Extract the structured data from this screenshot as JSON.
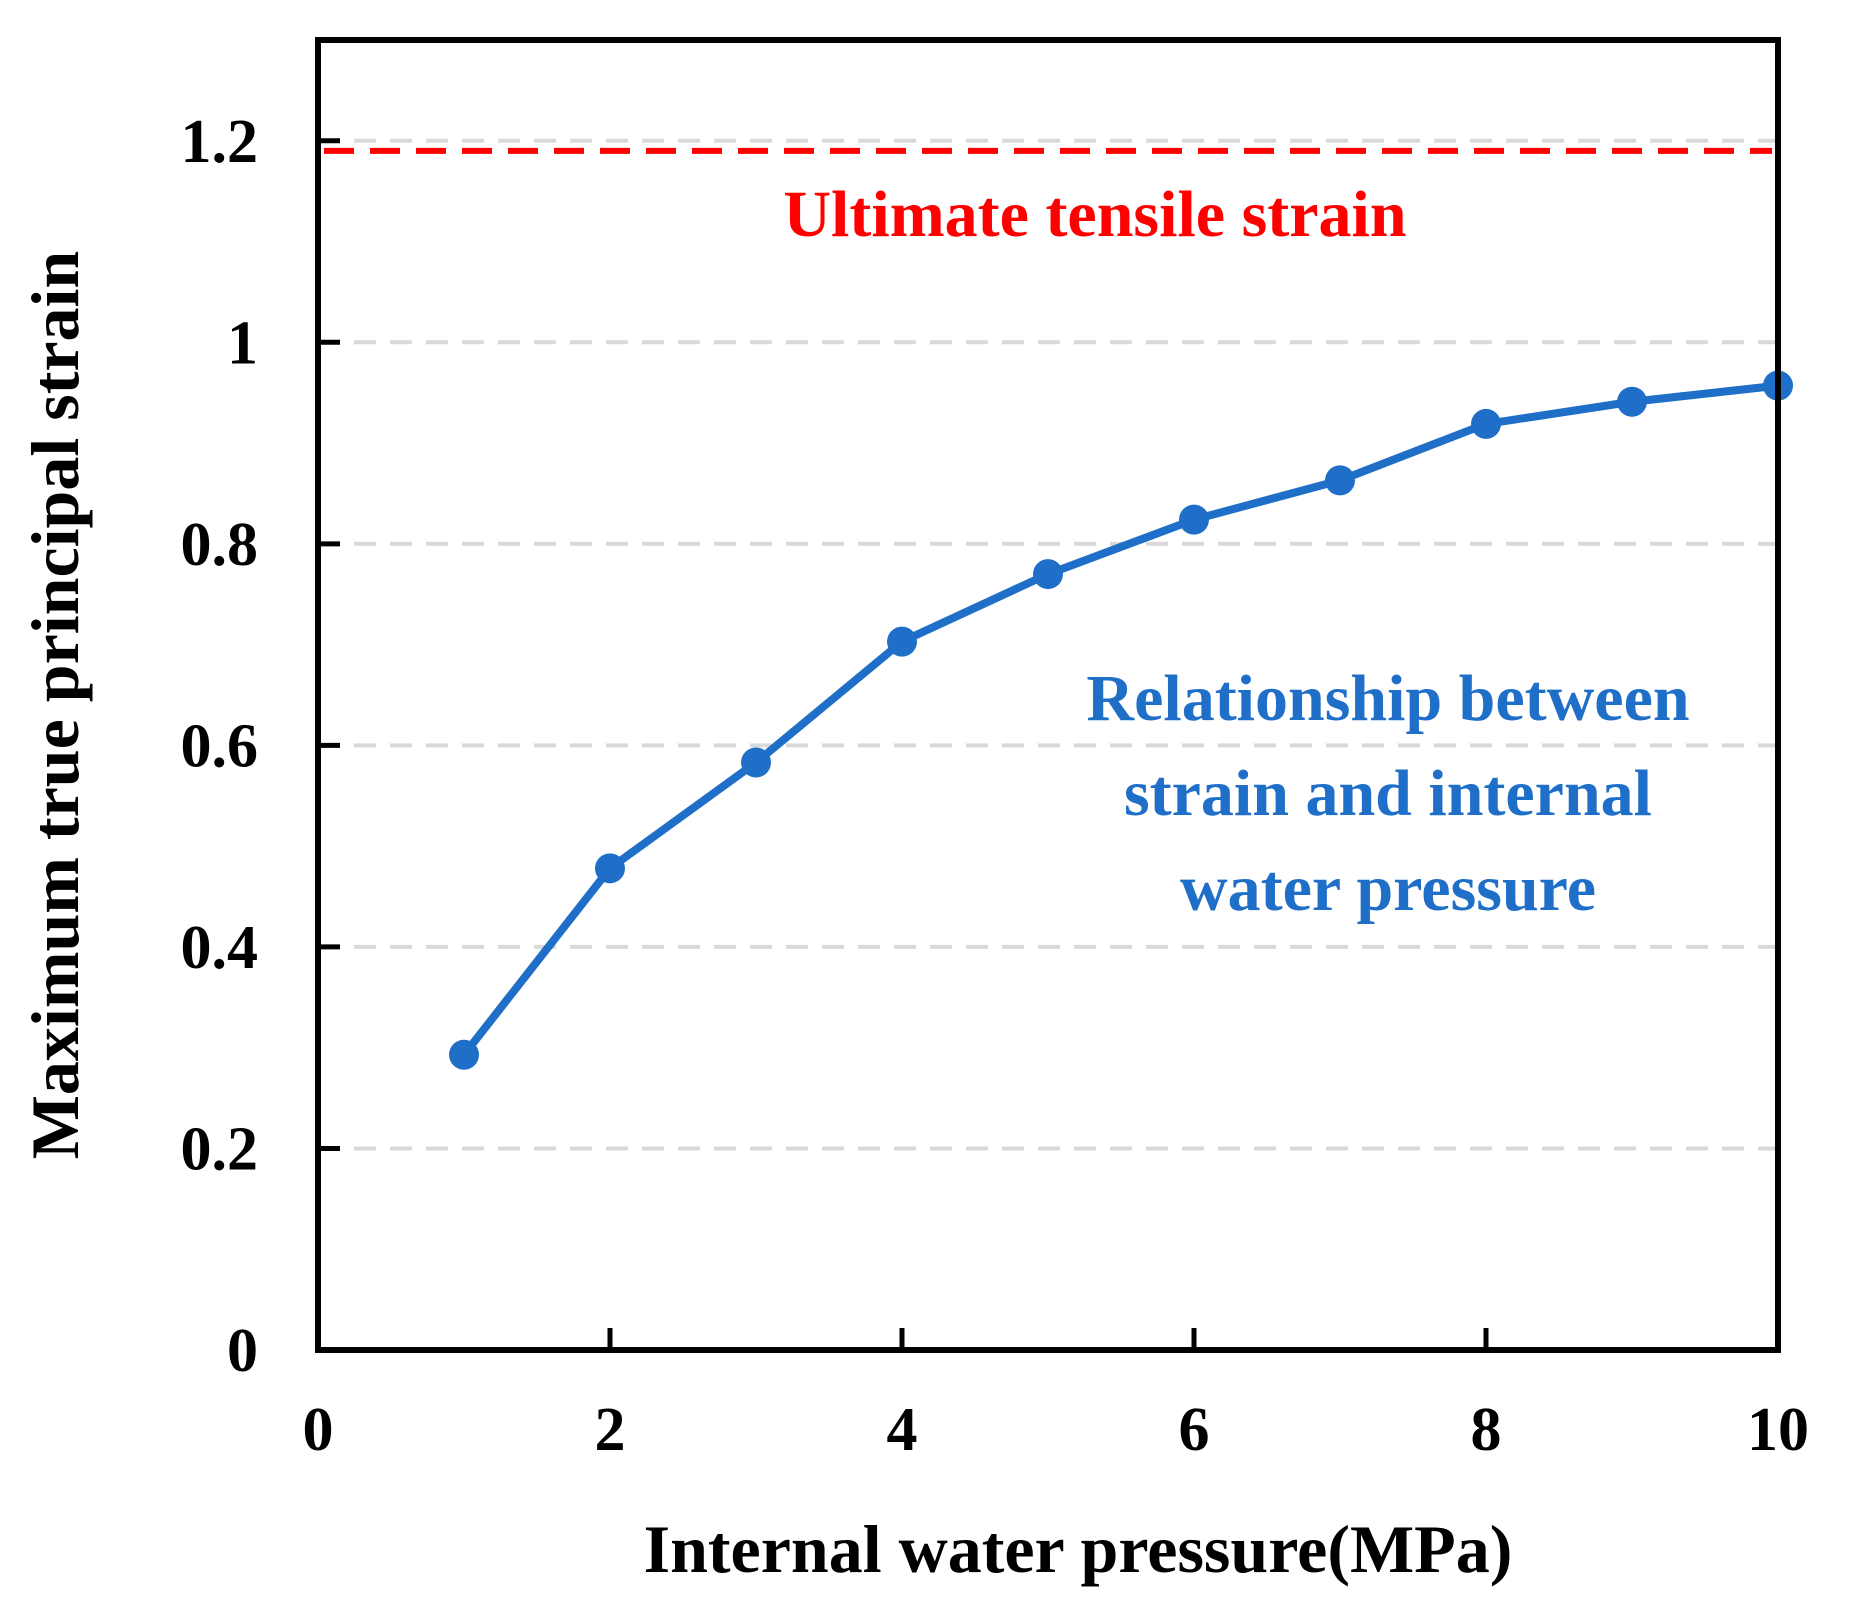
{
  "chart_data": {
    "type": "line",
    "xlabel": "Internal water pressure(MPa)",
    "ylabel": "Maximum true principal strain",
    "xlim": [
      0,
      10
    ],
    "ylim": [
      0,
      1.3
    ],
    "xticks": [
      0,
      2,
      4,
      6,
      8,
      10
    ],
    "yticks": [
      0,
      0.2,
      0.4,
      0.6,
      0.8,
      1,
      1.2
    ],
    "xtick_labels": [
      "0",
      "2",
      "4",
      "6",
      "8",
      "10"
    ],
    "ytick_labels": [
      "0",
      "0.2",
      "0.4",
      "0.6",
      "0.8",
      "1",
      "1.2"
    ],
    "grid": "horizontal dashed",
    "series": [
      {
        "name": "Relationship between strain and internal water pressure",
        "color": "#1f6fc9",
        "x": [
          1,
          2,
          3,
          4,
          5,
          6,
          7,
          8,
          9,
          10
        ],
        "y": [
          0.293,
          0.478,
          0.583,
          0.703,
          0.77,
          0.824,
          0.863,
          0.919,
          0.941,
          0.957
        ]
      }
    ],
    "reference_line": {
      "name": "Ultimate tensile strain",
      "y": 1.19,
      "color": "#ff0000",
      "style": "dashed"
    },
    "annotations": {
      "reference_label": "Ultimate tensile strain",
      "series_label_lines": [
        "Relationship between",
        "strain and internal",
        "water pressure"
      ]
    }
  }
}
